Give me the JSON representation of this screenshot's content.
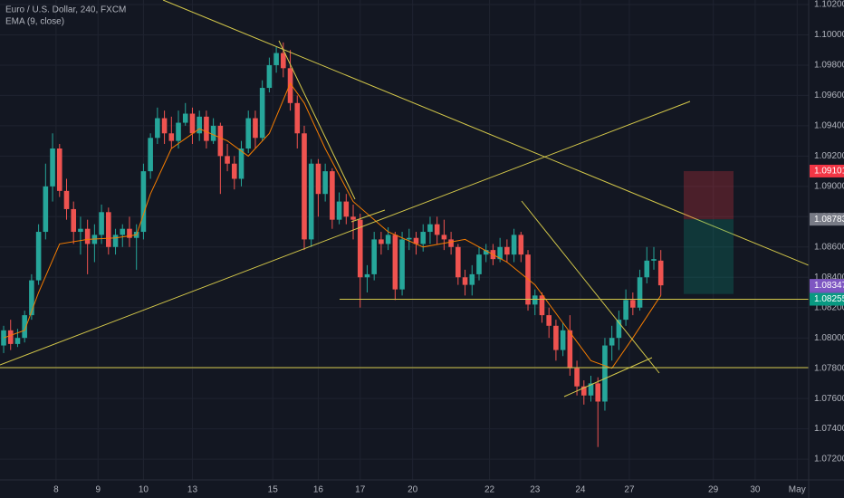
{
  "chart_data": {
    "type": "candlestick",
    "title": "Euro / U.S. Dollar, 240, FXCM",
    "up_color": "#26a69a",
    "down_color": "#ef5350",
    "open": [
      1.0795,
      1.0805,
      1.0796,
      1.08,
      1.0815,
      1.0838,
      1.087,
      1.09,
      1.0925,
      1.0897,
      1.0885,
      1.087,
      1.0872,
      1.0862,
      1.0868,
      1.0883,
      1.086,
      1.0868,
      1.0872,
      1.0866,
      1.087,
      1.091,
      1.0932,
      1.0945,
      1.0935,
      1.093,
      1.0942,
      1.0948,
      1.0935,
      1.0946,
      1.093,
      1.094,
      1.092,
      1.0915,
      1.0905,
      1.0925,
      1.0945,
      1.0932,
      1.0965,
      1.098,
      1.0988,
      1.0978,
      1.0955,
      1.0935,
      1.0865,
      1.0915,
      1.0895,
      1.091,
      1.0878,
      1.089,
      1.088,
      1.0878,
      1.084,
      1.0842,
      1.0865,
      1.0862,
      1.0868,
      1.0832,
      1.0865,
      1.0866,
      1.0862,
      1.087,
      1.0875,
      1.0868,
      1.0865,
      1.086,
      1.084,
      1.0835,
      1.0842,
      1.0855,
      1.0858,
      1.0852,
      1.086,
      1.0855,
      1.0868,
      1.0855,
      1.0822,
      1.0828,
      1.0815,
      1.0808,
      1.0792,
      1.0805,
      1.078,
      1.0768,
      1.0762,
      1.077,
      1.0758,
      1.0795,
      1.08,
      1.0812,
      1.0825,
      1.082,
      1.084,
      1.0851,
      1.0851
    ],
    "high": [
      1.0808,
      1.0812,
      1.0806,
      1.0818,
      1.0842,
      1.0875,
      1.0915,
      1.0935,
      1.0928,
      1.0905,
      1.089,
      1.088,
      1.0878,
      1.0875,
      1.0888,
      1.0886,
      1.0872,
      1.0875,
      1.088,
      1.0875,
      1.0915,
      1.0935,
      1.0952,
      1.095,
      1.0946,
      1.095,
      1.0955,
      1.0952,
      1.095,
      1.095,
      1.0945,
      1.0942,
      1.0928,
      1.092,
      1.093,
      1.095,
      1.095,
      1.097,
      1.0985,
      1.0992,
      1.0995,
      1.099,
      1.096,
      1.094,
      1.0918,
      1.0918,
      1.0915,
      1.0912,
      1.0896,
      1.0895,
      1.0888,
      1.0882,
      1.0848,
      1.087,
      1.087,
      1.0873,
      1.087,
      1.087,
      1.0872,
      1.087,
      1.0875,
      1.088,
      1.088,
      1.0878,
      1.087,
      1.0862,
      1.0845,
      1.0848,
      1.086,
      1.0862,
      1.0862,
      1.0866,
      1.0865,
      1.0872,
      1.087,
      1.0858,
      1.0832,
      1.083,
      1.082,
      1.0812,
      1.081,
      1.0815,
      1.0785,
      1.0772,
      1.0775,
      1.0774,
      1.08,
      1.0808,
      1.0818,
      1.0832,
      1.083,
      1.0845,
      1.086,
      1.086,
      1.0858
    ],
    "low": [
      1.079,
      1.0792,
      1.0794,
      1.0797,
      1.0812,
      1.0835,
      1.0865,
      1.089,
      1.0893,
      1.0878,
      1.0862,
      1.0855,
      1.0842,
      1.085,
      1.0862,
      1.0855,
      1.0855,
      1.086,
      1.086,
      1.0845,
      1.0865,
      1.0905,
      1.0928,
      1.0928,
      1.0925,
      1.0925,
      1.094,
      1.0928,
      1.093,
      1.0925,
      1.0928,
      1.0895,
      1.091,
      1.0898,
      1.09,
      1.0922,
      1.0925,
      1.093,
      1.0962,
      1.0975,
      1.0972,
      1.095,
      1.0925,
      1.0858,
      1.086,
      1.088,
      1.089,
      1.0872,
      1.0875,
      1.0875,
      1.0865,
      1.082,
      1.083,
      1.0838,
      1.0855,
      1.0858,
      1.0825,
      1.0828,
      1.0858,
      1.0855,
      1.0857,
      1.0862,
      1.0862,
      1.0858,
      1.0855,
      1.0835,
      1.0828,
      1.0828,
      1.0838,
      1.085,
      1.0848,
      1.085,
      1.085,
      1.085,
      1.085,
      1.0818,
      1.0815,
      1.081,
      1.08,
      1.0785,
      1.0788,
      1.0775,
      1.0762,
      1.0756,
      1.0758,
      1.0728,
      1.0752,
      1.0785,
      1.0792,
      1.0808,
      1.0815,
      1.0818,
      1.0836,
      1.0845,
      1.0828
    ],
    "close": [
      1.0805,
      1.0796,
      1.08,
      1.0815,
      1.0838,
      1.087,
      1.09,
      1.0925,
      1.0897,
      1.0885,
      1.087,
      1.0872,
      1.0862,
      1.0868,
      1.0883,
      1.086,
      1.0868,
      1.0872,
      1.0866,
      1.087,
      1.091,
      1.0932,
      1.0945,
      1.0935,
      1.093,
      1.0942,
      1.0948,
      1.0935,
      1.0946,
      1.093,
      1.094,
      1.092,
      1.0915,
      1.0905,
      1.0925,
      1.0945,
      1.0932,
      1.0965,
      1.098,
      1.0988,
      1.0978,
      1.0955,
      1.0935,
      1.0865,
      1.0915,
      1.0895,
      1.091,
      1.0878,
      1.089,
      1.088,
      1.0878,
      1.084,
      1.0842,
      1.0865,
      1.0862,
      1.0868,
      1.0832,
      1.0865,
      1.0866,
      1.0862,
      1.087,
      1.0875,
      1.0868,
      1.0865,
      1.086,
      1.084,
      1.0835,
      1.0842,
      1.0855,
      1.0858,
      1.0852,
      1.086,
      1.0855,
      1.0868,
      1.0855,
      1.0822,
      1.0828,
      1.0815,
      1.0808,
      1.0792,
      1.0805,
      1.078,
      1.0768,
      1.0762,
      1.077,
      1.0758,
      1.0795,
      1.08,
      1.0812,
      1.0825,
      1.082,
      1.084,
      1.0851,
      1.0852,
      1.08347
    ],
    "ema": {
      "name": "EMA (9, close)",
      "color": "#f57c00",
      "x": [
        0,
        3,
        5,
        8,
        12,
        16,
        19,
        21,
        24,
        28,
        32,
        35,
        38,
        41,
        43,
        46,
        50,
        55,
        60,
        66,
        72,
        76,
        80,
        84,
        87,
        90,
        94
      ],
      "values": [
        1.08,
        1.0805,
        1.083,
        1.0862,
        1.0865,
        1.0866,
        1.0868,
        1.0895,
        1.0925,
        1.0938,
        1.093,
        1.092,
        1.0935,
        1.0968,
        1.0955,
        1.0925,
        1.089,
        1.087,
        1.086,
        1.0865,
        1.085,
        1.0835,
        1.081,
        1.0785,
        1.078,
        1.08,
        1.0828
      ]
    },
    "position": {
      "stop": 1.09101,
      "entry": 1.08783,
      "target": 1.0829
    },
    "line_price": 1.08255,
    "countdown": "01:27:27",
    "xlim": [
      -0.52,
      115.15
    ],
    "xticks": [
      {
        "value": 7.5,
        "label": "8"
      },
      {
        "value": 13.5,
        "label": "9"
      },
      {
        "value": 20,
        "label": "10"
      },
      {
        "value": 27,
        "label": "13"
      },
      {
        "value": 38.5,
        "label": "15"
      },
      {
        "value": 45,
        "label": "16"
      },
      {
        "value": 51,
        "label": "17"
      },
      {
        "value": 58.5,
        "label": "20"
      },
      {
        "value": 69.5,
        "label": "22"
      },
      {
        "value": 76,
        "label": "23"
      },
      {
        "value": 82.5,
        "label": "24"
      },
      {
        "value": 89.5,
        "label": "27"
      },
      {
        "value": 101.5,
        "label": "29"
      },
      {
        "value": 107.5,
        "label": "30"
      },
      {
        "value": 113.5,
        "label": "May"
      }
    ],
    "ylim": [
      1.07063,
      1.1023
    ],
    "yticks": [
      {
        "value": 1.102,
        "label": "1.10200"
      },
      {
        "value": 1.1,
        "label": "1.10000"
      },
      {
        "value": 1.098,
        "label": "1.09800"
      },
      {
        "value": 1.096,
        "label": "1.09600"
      },
      {
        "value": 1.094,
        "label": "1.09400"
      },
      {
        "value": 1.092,
        "label": "1.09200"
      },
      {
        "value": 1.09,
        "label": "1.09000"
      },
      {
        "value": 1.088,
        "label": "1.08800"
      },
      {
        "value": 1.086,
        "label": "1.08600"
      },
      {
        "value": 1.084,
        "label": "1.08400"
      },
      {
        "value": 1.082,
        "label": "1.08200"
      },
      {
        "value": 1.08,
        "label": "1.08000"
      },
      {
        "value": 1.078,
        "label": "1.07800"
      },
      {
        "value": 1.076,
        "label": "1.07600"
      },
      {
        "value": 1.074,
        "label": "1.07400"
      },
      {
        "value": 1.072,
        "label": "1.07200"
      }
    ],
    "grid": true
  }
}
